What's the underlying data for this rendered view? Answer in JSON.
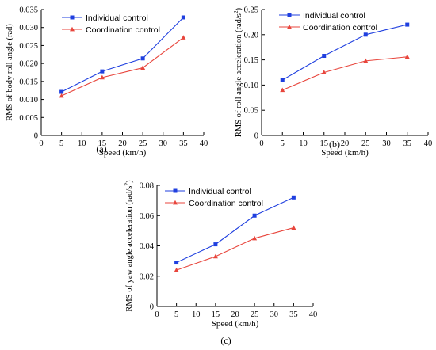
{
  "colors": {
    "individual": "#1f3fdf",
    "coordination": "#e8453c"
  },
  "chart_data": [
    {
      "type": "line",
      "panel_label": "(a)",
      "xlabel": "Speed (km/h)",
      "ylabel": "RMS of  body roll angle (rad)",
      "xlim": [
        0,
        40
      ],
      "ylim": [
        0,
        0.035
      ],
      "xticks": [
        "0",
        "5",
        "10",
        "15",
        "20",
        "25",
        "30",
        "35",
        "40"
      ],
      "yticks": [
        "0",
        "0.005",
        "0.010",
        "0.015",
        "0.020",
        "0.025",
        "0.030",
        "0.035"
      ],
      "legend_position": "top-left",
      "grid": false,
      "x": [
        5,
        15,
        25,
        35
      ],
      "series": [
        {
          "name": "Individual control",
          "marker": "square",
          "values": [
            0.0121,
            0.0178,
            0.0214,
            0.0328
          ]
        },
        {
          "name": "Coordination control",
          "marker": "triangle",
          "values": [
            0.011,
            0.0161,
            0.0188,
            0.0272
          ]
        }
      ]
    },
    {
      "type": "line",
      "panel_label": "(b)",
      "xlabel": "Speed (km/h)",
      "ylabel": "RMS of roll angle acceleration (rad/s²)",
      "xlim": [
        0,
        40
      ],
      "ylim": [
        0,
        0.25
      ],
      "xticks": [
        "0",
        "5",
        "10",
        "15",
        "20",
        "25",
        "30",
        "35",
        "40"
      ],
      "yticks": [
        "0",
        "0.05",
        "0.10",
        "0.15",
        "0.20",
        "0.25"
      ],
      "legend_position": "top-left",
      "grid": false,
      "x": [
        5,
        15,
        25,
        35
      ],
      "series": [
        {
          "name": "Individual control",
          "marker": "square",
          "values": [
            0.11,
            0.158,
            0.2,
            0.22
          ]
        },
        {
          "name": "Coordination control",
          "marker": "triangle",
          "values": [
            0.09,
            0.125,
            0.148,
            0.156
          ]
        }
      ]
    },
    {
      "type": "line",
      "panel_label": "(c)",
      "xlabel": "Speed (km/h)",
      "ylabel": "RMS of yaw angle acceleration (rad/s²)",
      "xlim": [
        0,
        40
      ],
      "ylim": [
        0,
        0.08
      ],
      "xticks": [
        "0",
        "5",
        "10",
        "15",
        "20",
        "25",
        "30",
        "35",
        "40"
      ],
      "yticks": [
        "0",
        "0.02",
        "0.04",
        "0.06",
        "0.08"
      ],
      "legend_position": "top-left",
      "grid": false,
      "x": [
        5,
        15,
        25,
        35
      ],
      "series": [
        {
          "name": "Individual control",
          "marker": "square",
          "values": [
            0.029,
            0.041,
            0.06,
            0.072
          ]
        },
        {
          "name": "Coordination control",
          "marker": "triangle",
          "values": [
            0.024,
            0.033,
            0.045,
            0.052
          ]
        }
      ]
    }
  ]
}
